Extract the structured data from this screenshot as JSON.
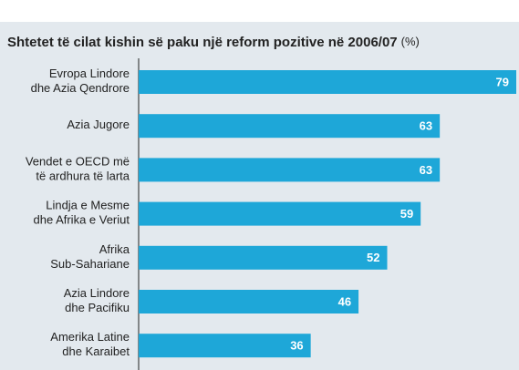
{
  "chart_data": {
    "type": "barh",
    "title": "Shtetet të cilat kishin së paku një reform pozitive në 2006/07",
    "unit": "(%)",
    "categories": [
      "Evropa Lindore\ndhe  Azia Qendrore",
      "Azia Jugore",
      "Vendet e OECD më\ntë ardhura të larta",
      "Lindja e Mesme\ndhe Afrika e Veriut",
      "Afrika\nSub-Sahariane",
      "Azia Lindore\ndhe Pacifiku",
      "Amerika Latine\ndhe Karaibet"
    ],
    "values": [
      79,
      63,
      63,
      59,
      52,
      46,
      36
    ],
    "color": "#1ea7d8",
    "xlim": [
      0,
      79
    ]
  }
}
